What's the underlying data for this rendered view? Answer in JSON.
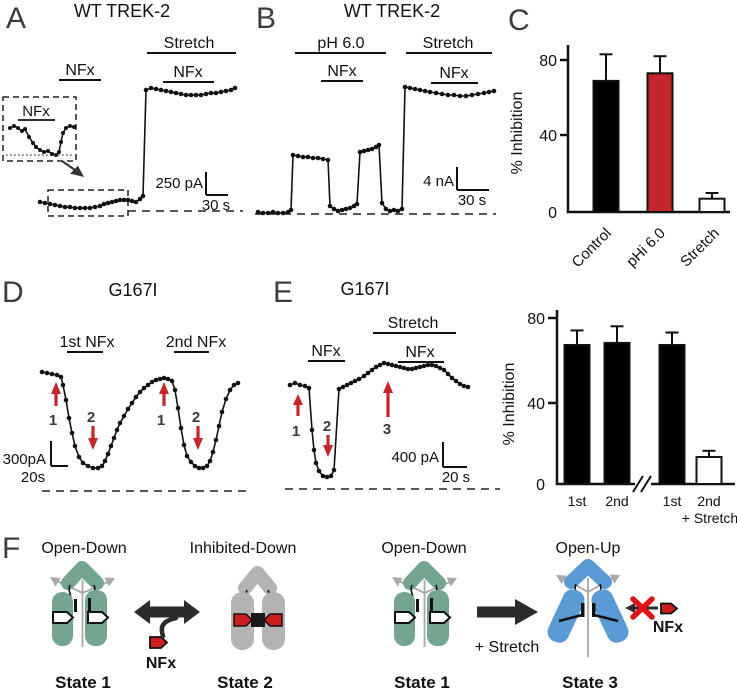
{
  "figure": {
    "panels": {
      "A": {
        "letter": "A",
        "title": "WT TREK-2",
        "stretch_label": "Stretch",
        "nfx_label": "NFx",
        "nfx_label2": "NFx",
        "inset_nfx": "NFx",
        "scale_v": "250 pA",
        "scale_h": "30 s"
      },
      "B": {
        "letter": "B",
        "title": "WT TREK-2",
        "ph_label": "pH 6.0",
        "nfx_label": "NFx",
        "stretch_label": "Stretch",
        "nfx_label2": "NFx",
        "scale_v": "4 nA",
        "scale_h": "30 s"
      },
      "C": {
        "letter": "C"
      },
      "D": {
        "letter": "D",
        "title": "G167I",
        "nfx1_label": "1st NFx",
        "nfx2_label": "2nd NFx",
        "scale_v": "300pA",
        "scale_h": "20s",
        "markers": [
          "1",
          "2",
          "1",
          "2"
        ]
      },
      "E": {
        "letter": "E",
        "title": "G167I",
        "nfx_label": "NFx",
        "stretch_label": "Stretch",
        "nfx_label2": "NFx",
        "scale_v": "400 pA",
        "scale_h": "20 s",
        "markers": [
          "1",
          "2",
          "3"
        ]
      },
      "F": {
        "letter": "F",
        "conformations": [
          "Open-Down",
          "Inhibited-Down",
          "Open-Down",
          "Open-Up"
        ],
        "states": [
          "State 1",
          "State 2",
          "State 1",
          "State 3"
        ],
        "nfx_left": "NFx",
        "nfx_right": "NFx",
        "stretch_arrow": "+ Stretch"
      }
    },
    "colors": {
      "trace": "#111111",
      "red_accent": "#c5262c",
      "red_x": "#e01212",
      "pentagon_red": "#cc1e1e",
      "channel_green": "#74a591",
      "channel_gray": "#b3b3b3",
      "channel_blue": "#5b9bd5",
      "panel_letter": "#3d3d3d"
    }
  },
  "traces": {
    "A_main": [
      [
        40,
        202
      ],
      [
        45,
        203
      ],
      [
        50,
        204
      ],
      [
        55,
        205
      ],
      [
        60,
        206
      ],
      [
        65,
        207
      ],
      [
        70,
        207
      ],
      [
        75,
        208
      ],
      [
        80,
        208
      ],
      [
        85,
        208
      ],
      [
        90,
        208
      ],
      [
        95,
        207
      ],
      [
        100,
        206
      ],
      [
        104,
        204
      ],
      [
        108,
        203
      ],
      [
        112,
        202
      ],
      [
        116,
        201
      ],
      [
        120,
        200
      ],
      [
        124,
        200
      ],
      [
        128,
        200
      ],
      [
        132,
        201
      ],
      [
        136,
        202
      ],
      [
        140,
        199
      ],
      [
        143,
        196
      ],
      [
        146,
        90
      ],
      [
        151,
        88
      ],
      [
        156,
        89
      ],
      [
        161,
        90
      ],
      [
        166,
        91
      ],
      [
        171,
        92
      ],
      [
        176,
        93
      ],
      [
        181,
        94
      ],
      [
        186,
        95
      ],
      [
        191,
        95
      ],
      [
        196,
        95
      ],
      [
        201,
        95
      ],
      [
        206,
        94
      ],
      [
        211,
        93
      ],
      [
        216,
        93
      ],
      [
        221,
        92
      ],
      [
        226,
        91
      ],
      [
        231,
        90
      ],
      [
        235,
        88
      ]
    ],
    "A_inset": [
      [
        10,
        128
      ],
      [
        14,
        126
      ],
      [
        18,
        128
      ],
      [
        22,
        131
      ],
      [
        25,
        129
      ],
      [
        29,
        137
      ],
      [
        33,
        143
      ],
      [
        36,
        147
      ],
      [
        40,
        150
      ],
      [
        44,
        152
      ],
      [
        48,
        151
      ],
      [
        52,
        154
      ],
      [
        56,
        155
      ],
      [
        59,
        152
      ],
      [
        61,
        142
      ],
      [
        63,
        133
      ],
      [
        66,
        128
      ],
      [
        70,
        126
      ],
      [
        74,
        127
      ]
    ],
    "B": [
      [
        8,
        212
      ],
      [
        13,
        213
      ],
      [
        18,
        213
      ],
      [
        23,
        212
      ],
      [
        28,
        213
      ],
      [
        33,
        213
      ],
      [
        38,
        212
      ],
      [
        41,
        210
      ],
      [
        43,
        155
      ],
      [
        48,
        156
      ],
      [
        53,
        157
      ],
      [
        58,
        157
      ],
      [
        63,
        158
      ],
      [
        68,
        158
      ],
      [
        73,
        159
      ],
      [
        78,
        160
      ],
      [
        80,
        206
      ],
      [
        84,
        209
      ],
      [
        88,
        211
      ],
      [
        92,
        210
      ],
      [
        96,
        209
      ],
      [
        100,
        208
      ],
      [
        104,
        206
      ],
      [
        107,
        204
      ],
      [
        110,
        152
      ],
      [
        114,
        151
      ],
      [
        118,
        150
      ],
      [
        122,
        149
      ],
      [
        126,
        147
      ],
      [
        129,
        145
      ],
      [
        132,
        203
      ],
      [
        136,
        209
      ],
      [
        140,
        211
      ],
      [
        144,
        210
      ],
      [
        148,
        211
      ],
      [
        152,
        209
      ],
      [
        155,
        87
      ],
      [
        160,
        88
      ],
      [
        165,
        89
      ],
      [
        170,
        90
      ],
      [
        175,
        91
      ],
      [
        180,
        92
      ],
      [
        186,
        93
      ],
      [
        192,
        94
      ],
      [
        198,
        95
      ],
      [
        204,
        95
      ],
      [
        210,
        96
      ],
      [
        216,
        96
      ],
      [
        222,
        95
      ],
      [
        228,
        94
      ],
      [
        234,
        93
      ],
      [
        239,
        92
      ],
      [
        244,
        91
      ]
    ],
    "D": [
      [
        42,
        102
      ],
      [
        47,
        103
      ],
      [
        52,
        104
      ],
      [
        57,
        105
      ],
      [
        61,
        107
      ],
      [
        63,
        115
      ],
      [
        66,
        130
      ],
      [
        69,
        148
      ],
      [
        72,
        163
      ],
      [
        75,
        176
      ],
      [
        79,
        187
      ],
      [
        83,
        193
      ],
      [
        88,
        196
      ],
      [
        93,
        198
      ],
      [
        98,
        198
      ],
      [
        102,
        196
      ],
      [
        105,
        191
      ],
      [
        108,
        184
      ],
      [
        111,
        176
      ],
      [
        114,
        168
      ],
      [
        117,
        160
      ],
      [
        120,
        153
      ],
      [
        124,
        146
      ],
      [
        128,
        139
      ],
      [
        132,
        133
      ],
      [
        136,
        127
      ],
      [
        140,
        122
      ],
      [
        144,
        118
      ],
      [
        148,
        115
      ],
      [
        152,
        112
      ],
      [
        156,
        110
      ],
      [
        160,
        109
      ],
      [
        164,
        108
      ],
      [
        168,
        109
      ],
      [
        172,
        111
      ],
      [
        175,
        120
      ],
      [
        178,
        138
      ],
      [
        181,
        158
      ],
      [
        184,
        175
      ],
      [
        187,
        186
      ],
      [
        191,
        192
      ],
      [
        195,
        196
      ],
      [
        199,
        198
      ],
      [
        203,
        198
      ],
      [
        207,
        196
      ],
      [
        210,
        191
      ],
      [
        213,
        182
      ],
      [
        216,
        170
      ],
      [
        219,
        156
      ],
      [
        222,
        142
      ],
      [
        226,
        129
      ],
      [
        230,
        120
      ],
      [
        234,
        115
      ],
      [
        238,
        113
      ]
    ],
    "E": [
      [
        35,
        115
      ],
      [
        40,
        113
      ],
      [
        45,
        115
      ],
      [
        50,
        116
      ],
      [
        54,
        118
      ],
      [
        57,
        160
      ],
      [
        59,
        180
      ],
      [
        61,
        193
      ],
      [
        64,
        201
      ],
      [
        68,
        206
      ],
      [
        72,
        207
      ],
      [
        76,
        206
      ],
      [
        79,
        200
      ],
      [
        84,
        119
      ],
      [
        88,
        117
      ],
      [
        92,
        115
      ],
      [
        96,
        113
      ],
      [
        100,
        111
      ],
      [
        104,
        109
      ],
      [
        109,
        106
      ],
      [
        113,
        103
      ],
      [
        117,
        100
      ],
      [
        121,
        97
      ],
      [
        125,
        95
      ],
      [
        129,
        93
      ],
      [
        133,
        94
      ],
      [
        137,
        95
      ],
      [
        141,
        96
      ],
      [
        145,
        97
      ],
      [
        149,
        98
      ],
      [
        153,
        99
      ],
      [
        157,
        99
      ],
      [
        161,
        98
      ],
      [
        165,
        97
      ],
      [
        169,
        96
      ],
      [
        173,
        95
      ],
      [
        177,
        95
      ],
      [
        181,
        96
      ],
      [
        185,
        98
      ],
      [
        189,
        100
      ],
      [
        193,
        104
      ],
      [
        197,
        108
      ],
      [
        201,
        111
      ],
      [
        205,
        114
      ],
      [
        209,
        116
      ],
      [
        213,
        117
      ]
    ]
  },
  "chart_data": [
    {
      "type": "bar",
      "panel": "C",
      "categories": [
        "Control",
        "pHi 6.0",
        "Stretch"
      ],
      "values": [
        69,
        73,
        7
      ],
      "errors": [
        14,
        9,
        3
      ],
      "bar_colors": [
        "#000000",
        "#c5262c",
        "#ffffff"
      ],
      "ylabel": "% Inhibition",
      "yticks": [
        0,
        40,
        80
      ],
      "ylim": [
        0,
        88
      ],
      "grid": false,
      "legend": "none"
    },
    {
      "type": "bar",
      "panel": "E-right",
      "categories": [
        "1st",
        "2nd",
        "1st",
        "2nd"
      ],
      "category_sublabel": "+ Stretch",
      "values": [
        67,
        68,
        67,
        13
      ],
      "errors": [
        7,
        8,
        6,
        3
      ],
      "bar_colors": [
        "#000000",
        "#000000",
        "#000000",
        "#ffffff"
      ],
      "ylabel": "% Inhibition",
      "yticks": [
        0,
        40,
        80
      ],
      "ylim": [
        0,
        88
      ],
      "axis_break_after_index": 1,
      "grid": false,
      "legend": "none"
    }
  ]
}
